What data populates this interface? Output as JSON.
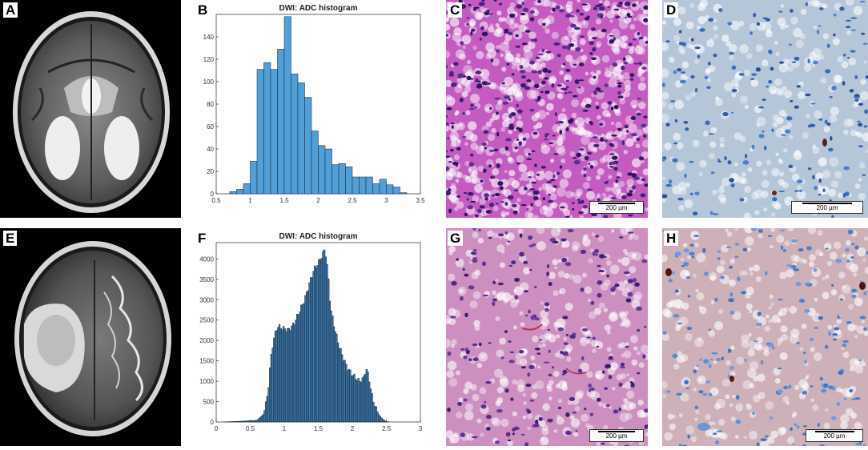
{
  "panels": {
    "A": "A",
    "B": "B",
    "C": "C",
    "D": "D",
    "E": "E",
    "F": "F",
    "G": "G",
    "H": "H"
  },
  "scalebars": {
    "C": "200 µm",
    "D": "200 µm",
    "G": "200 µm",
    "H": "200 µm"
  },
  "colors": {
    "histB": "#4f9fd8",
    "histF": "#3b7db5",
    "he_stain": "#c35bc0",
    "ihc_blue": "#b6c6d9",
    "ihc_tan": "#cdb0b8"
  },
  "chart_data": [
    {
      "type": "bar",
      "title": "DWI: ADC histogram",
      "xlim": [
        0.5,
        3.5
      ],
      "ylim": [
        0,
        160
      ],
      "xticks": [
        "0.5",
        "1",
        "1.5",
        "2",
        "2.5",
        "3",
        "3.5"
      ],
      "yticks": [
        "0",
        "20",
        "40",
        "60",
        "80",
        "100",
        "120",
        "140"
      ],
      "bin_width": 0.1,
      "bin_starts": [
        0.7,
        0.8,
        0.9,
        1.0,
        1.1,
        1.2,
        1.3,
        1.4,
        1.5,
        1.6,
        1.7,
        1.8,
        1.9,
        2.0,
        2.1,
        2.2,
        2.3,
        2.4,
        2.5,
        2.6,
        2.7,
        2.8,
        2.9,
        3.0,
        3.1,
        3.2
      ],
      "values": [
        2,
        4,
        9,
        29,
        111,
        117,
        111,
        129,
        158,
        107,
        99,
        86,
        56,
        43,
        40,
        26,
        27,
        24,
        15,
        15,
        15,
        9,
        13,
        8,
        6,
        1
      ]
    },
    {
      "type": "bar",
      "title": "DWI: ADC histogram",
      "xlim": [
        0,
        3
      ],
      "ylim": [
        0,
        4400
      ],
      "xticks": [
        "0",
        "0.5",
        "1",
        "1.5",
        "2",
        "2.5",
        "3"
      ],
      "yticks": [
        "0",
        "500",
        "1000",
        "1500",
        "2000",
        "2500",
        "3000",
        "3500",
        "4000"
      ],
      "bin_width": 0.02,
      "profile": [
        [
          0.1,
          0
        ],
        [
          0.3,
          15
        ],
        [
          0.6,
          40
        ],
        [
          0.7,
          200
        ],
        [
          0.76,
          700
        ],
        [
          0.8,
          1500
        ],
        [
          0.84,
          2000
        ],
        [
          0.9,
          2350
        ],
        [
          0.98,
          2300
        ],
        [
          1.06,
          2250
        ],
        [
          1.14,
          2400
        ],
        [
          1.22,
          2700
        ],
        [
          1.3,
          3000
        ],
        [
          1.38,
          3450
        ],
        [
          1.44,
          3750
        ],
        [
          1.5,
          3900
        ],
        [
          1.56,
          4100
        ],
        [
          1.6,
          4250
        ],
        [
          1.64,
          3700
        ],
        [
          1.68,
          2800
        ],
        [
          1.74,
          2300
        ],
        [
          1.8,
          1900
        ],
        [
          1.86,
          1600
        ],
        [
          1.92,
          1350
        ],
        [
          1.98,
          1200
        ],
        [
          2.04,
          1100
        ],
        [
          2.1,
          1000
        ],
        [
          2.16,
          1050
        ],
        [
          2.2,
          1300
        ],
        [
          2.24,
          1150
        ],
        [
          2.28,
          700
        ],
        [
          2.34,
          350
        ],
        [
          2.4,
          150
        ],
        [
          2.46,
          50
        ],
        [
          2.5,
          10
        ],
        [
          2.55,
          0
        ]
      ]
    }
  ]
}
